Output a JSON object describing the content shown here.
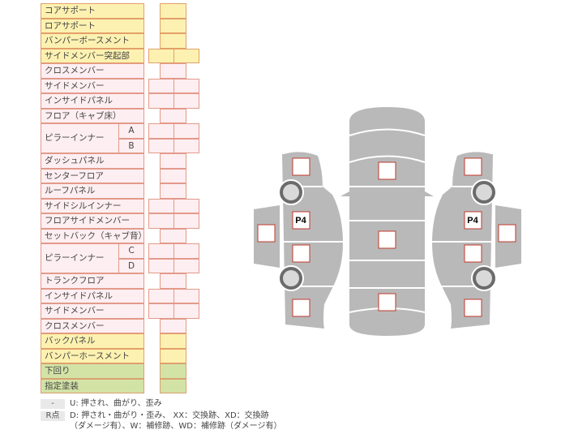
{
  "rows": [
    {
      "label": "コアサポート",
      "color": "yellow",
      "cells": 1
    },
    {
      "label": "ロアサポート",
      "color": "yellow",
      "cells": 1
    },
    {
      "label": "バンパーボースメント",
      "color": "yellow",
      "cells": 1
    },
    {
      "label": "サイドメンバー突起部",
      "color": "yellow",
      "cells": 2
    },
    {
      "label": "クロスメンバー",
      "color": "pink",
      "cells": 1
    },
    {
      "label": "サイドメンバー",
      "color": "pink",
      "cells": 2
    },
    {
      "label": "インサイドパネル",
      "color": "pink",
      "cells": 2
    },
    {
      "label": "フロア（キャブ床）",
      "color": "pink",
      "cells": 1
    },
    {
      "label": "ピラーインナー",
      "sub": "A",
      "color": "pink",
      "cells": 2
    },
    {
      "label": "",
      "sub": "B",
      "color": "pink",
      "cells": 2
    },
    {
      "label": "ダッシュパネル",
      "color": "pink",
      "cells": 1
    },
    {
      "label": "センターフロア",
      "color": "pink",
      "cells": 1
    },
    {
      "label": "ルーフパネル",
      "color": "pink",
      "cells": 1
    },
    {
      "label": "サイドシルインナー",
      "color": "pink",
      "cells": 2
    },
    {
      "label": "フロアサイドメンバー",
      "color": "pink",
      "cells": 2
    },
    {
      "label": "セットバック（キャブ背）",
      "color": "pink",
      "cells": 1
    },
    {
      "label": "ピラーインナー",
      "sub": "C",
      "color": "pink",
      "cells": 2
    },
    {
      "label": "",
      "sub": "D",
      "color": "pink",
      "cells": 2
    },
    {
      "label": "トランクフロア",
      "color": "pink",
      "cells": 1
    },
    {
      "label": "インサイドパネル",
      "color": "pink",
      "cells": 2
    },
    {
      "label": "サイドメンバー",
      "color": "pink",
      "cells": 2
    },
    {
      "label": "クロスメンバー",
      "color": "pink",
      "cells": 1
    },
    {
      "label": "バックパネル",
      "color": "yellow",
      "cells": 1
    },
    {
      "label": "バンパーホースメント",
      "color": "yellow",
      "cells": 1
    },
    {
      "label": "下回り",
      "color": "green",
      "cells": 1
    },
    {
      "label": "指定塗装",
      "color": "green",
      "cells": 1
    }
  ],
  "diagram": {
    "left_marker": "P4",
    "right_marker": "P4",
    "body_color": "#b9b9b9",
    "box_border": "#c0392b"
  },
  "legend": {
    "key1": "-",
    "text1": "U: 押され、曲がり、歪み",
    "key2": "R点",
    "text2": "D: 押され・曲がり・歪み、 XX：交換跡、XD：交換跡",
    "text3": "（ダメージ有）、W：補修跡、WD：補修跡（ダメージ有）"
  }
}
